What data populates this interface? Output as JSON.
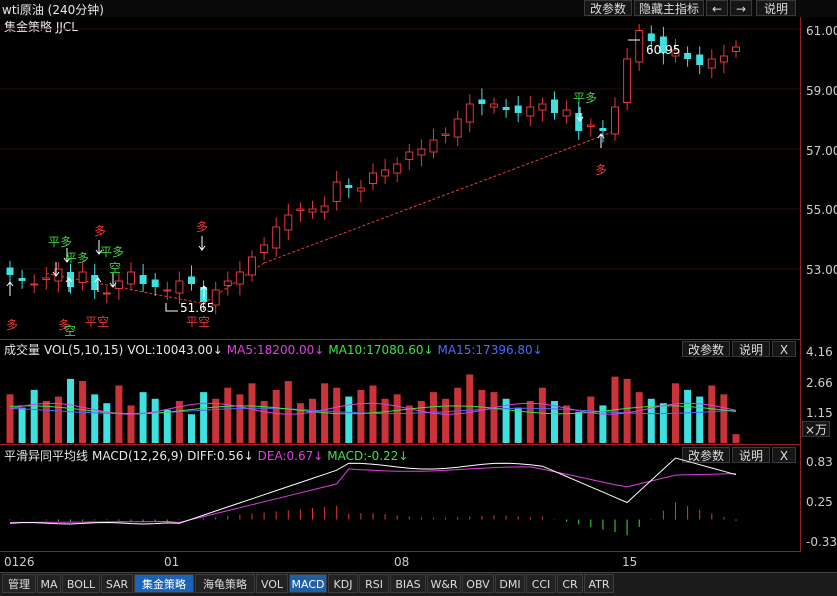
{
  "window": {
    "title": "wti原油 (240分钟)",
    "buttons": {
      "params": "改参数",
      "hide": "隐藏主指标",
      "prev": "←",
      "next": "→",
      "help": "说明"
    }
  },
  "main": {
    "indicator_label": "集金策略 JJCL",
    "y_ticks": [
      "61.00",
      "59.00",
      "57.00",
      "55.00",
      "53.00"
    ],
    "annotations": {
      "high_value": "60.95",
      "low_value": "51.65",
      "signals": [
        "多",
        "多",
        "平多",
        "平多",
        "空",
        "平空",
        "多",
        "平多",
        "空",
        "平空",
        "多",
        "平多",
        "多"
      ]
    }
  },
  "volume": {
    "title": "成交量",
    "params": "VOL(5,10,15)",
    "vol_label": "VOL:10043.00↓",
    "ma5": "MA5:18200.00↓",
    "ma10": "MA10:17080.60↓",
    "ma15": "MA15:17396.80↓",
    "buttons": {
      "params": "改参数",
      "help": "说明",
      "close": "X"
    },
    "y_ticks": [
      "4.16",
      "2.66",
      "1.15"
    ],
    "unit": "×万"
  },
  "macd": {
    "title": "平滑异同平均线",
    "params": "MACD(12,26,9)",
    "diff": "DIFF:0.56↓",
    "dea": "DEA:0.67↓",
    "macd": "MACD:-0.22↓",
    "buttons": {
      "params": "改参数",
      "help": "说明",
      "close": "X"
    },
    "y_ticks": [
      "0.83",
      "0.25",
      "-0.33"
    ]
  },
  "dates": [
    "0126",
    "01",
    "08",
    "15"
  ],
  "tabs": [
    "管理",
    "MA",
    "BOLL",
    "SAR",
    "集金策略",
    "海龟策略",
    "VOL",
    "MACD",
    "KDJ",
    "RSI",
    "BIAS",
    "W&R",
    "OBV",
    "DMI",
    "CCI",
    "CR",
    "ATR"
  ],
  "colors": {
    "up": "#e0393d",
    "down": "#3fe0e0",
    "ma5": "#e040e0",
    "ma10": "#40e040",
    "ma15": "#4a6bff",
    "diff": "#ffffff",
    "dea": "#e040e0",
    "signal_buy": "#e83a3a",
    "signal_sell": "#3fd23f"
  },
  "chart_data": [
    {
      "type": "candlestick",
      "title": "集金策略 JJCL",
      "ylim": [
        51.3,
        61.3
      ],
      "y_ticks": [
        61.0,
        59.0,
        57.0,
        55.0,
        53.0
      ],
      "close": [
        52.8,
        52.6,
        52.5,
        52.7,
        53.0,
        52.4,
        52.9,
        52.3,
        52.2,
        52.6,
        52.9,
        52.5,
        52.4,
        52.3,
        52.6,
        52.5,
        51.9,
        52.3,
        52.6,
        52.9,
        53.4,
        53.8,
        54.4,
        54.8,
        55.0,
        55.0,
        55.1,
        55.9,
        55.7,
        55.7,
        56.2,
        56.3,
        56.5,
        56.9,
        57.0,
        57.3,
        57.5,
        58.0,
        58.5,
        58.5,
        58.5,
        58.3,
        58.2,
        58.4,
        58.5,
        58.2,
        58.3,
        57.6,
        57.8,
        57.6,
        58.4,
        60.0,
        60.95,
        60.6,
        60.2,
        60.3,
        60.0,
        59.8,
        60.0,
        60.1,
        60.4
      ]
    },
    {
      "type": "bar",
      "title": "成交量 VOL(5,10,15)",
      "ylim": [
        0,
        4.16
      ],
      "series": [
        {
          "name": "MA5",
          "value": 18200.0
        },
        {
          "name": "MA10",
          "value": 17080.6
        },
        {
          "name": "MA15",
          "value": 17396.8
        }
      ],
      "last_volume": 10043.0
    },
    {
      "type": "line",
      "title": "平滑异同平均线 MACD(12,26,9)",
      "ylim": [
        -0.33,
        0.83
      ],
      "series": [
        {
          "name": "DIFF",
          "value": 0.56
        },
        {
          "name": "DEA",
          "value": 0.67
        },
        {
          "name": "MACD",
          "value": -0.22
        }
      ]
    }
  ]
}
